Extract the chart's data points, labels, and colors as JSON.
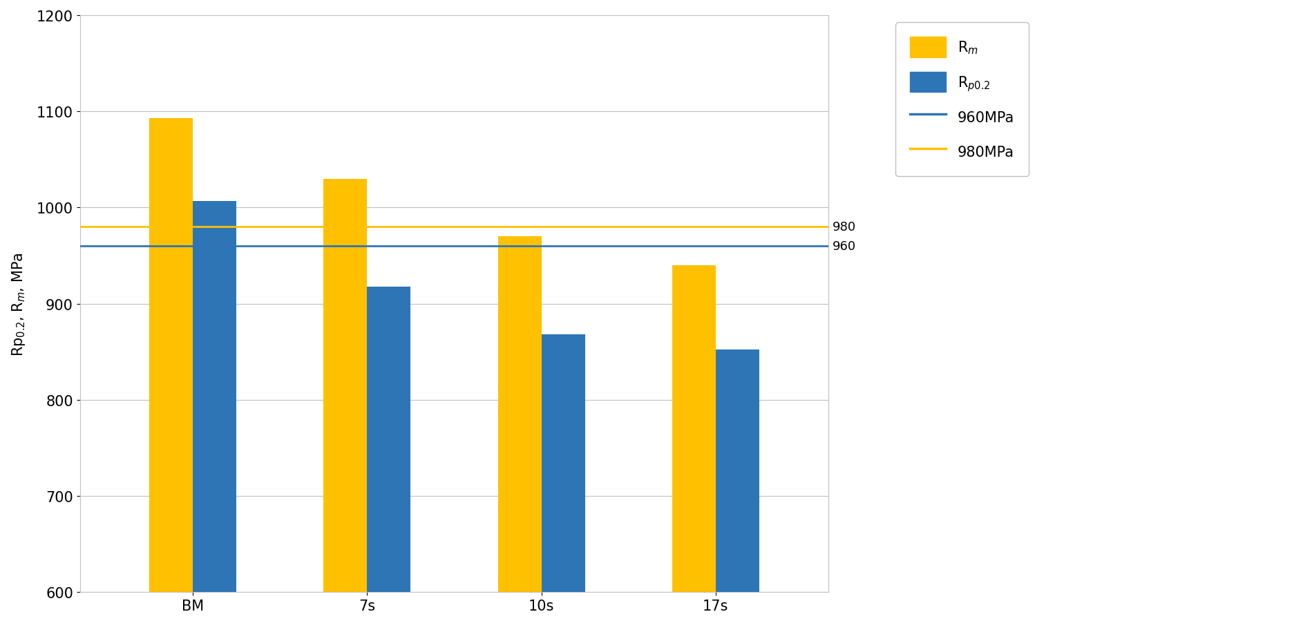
{
  "categories": [
    "BM",
    "7s",
    "10s",
    "17s"
  ],
  "rm_values": [
    1093,
    1030,
    970,
    940
  ],
  "rp_values": [
    1007,
    918,
    868,
    852
  ],
  "rm_color": "#FFC000",
  "rp_color": "#2E75B6",
  "hline_960_color": "#2E75B6",
  "hline_980_color": "#FFC000",
  "hline_960_value": 960,
  "hline_980_value": 980,
  "ylim": [
    600,
    1200
  ],
  "yticks": [
    600,
    700,
    800,
    900,
    1000,
    1100,
    1200
  ],
  "bar_width": 0.25,
  "hline_label_980": "980",
  "hline_label_960": "960",
  "background_color": "#FFFFFF",
  "grid_color": "#C0C0C0",
  "ylabel": "Rp$_{0.2}$, R$_m$, MPa",
  "ylabel_fontsize": 15,
  "tick_fontsize": 15,
  "legend_fontsize": 15
}
